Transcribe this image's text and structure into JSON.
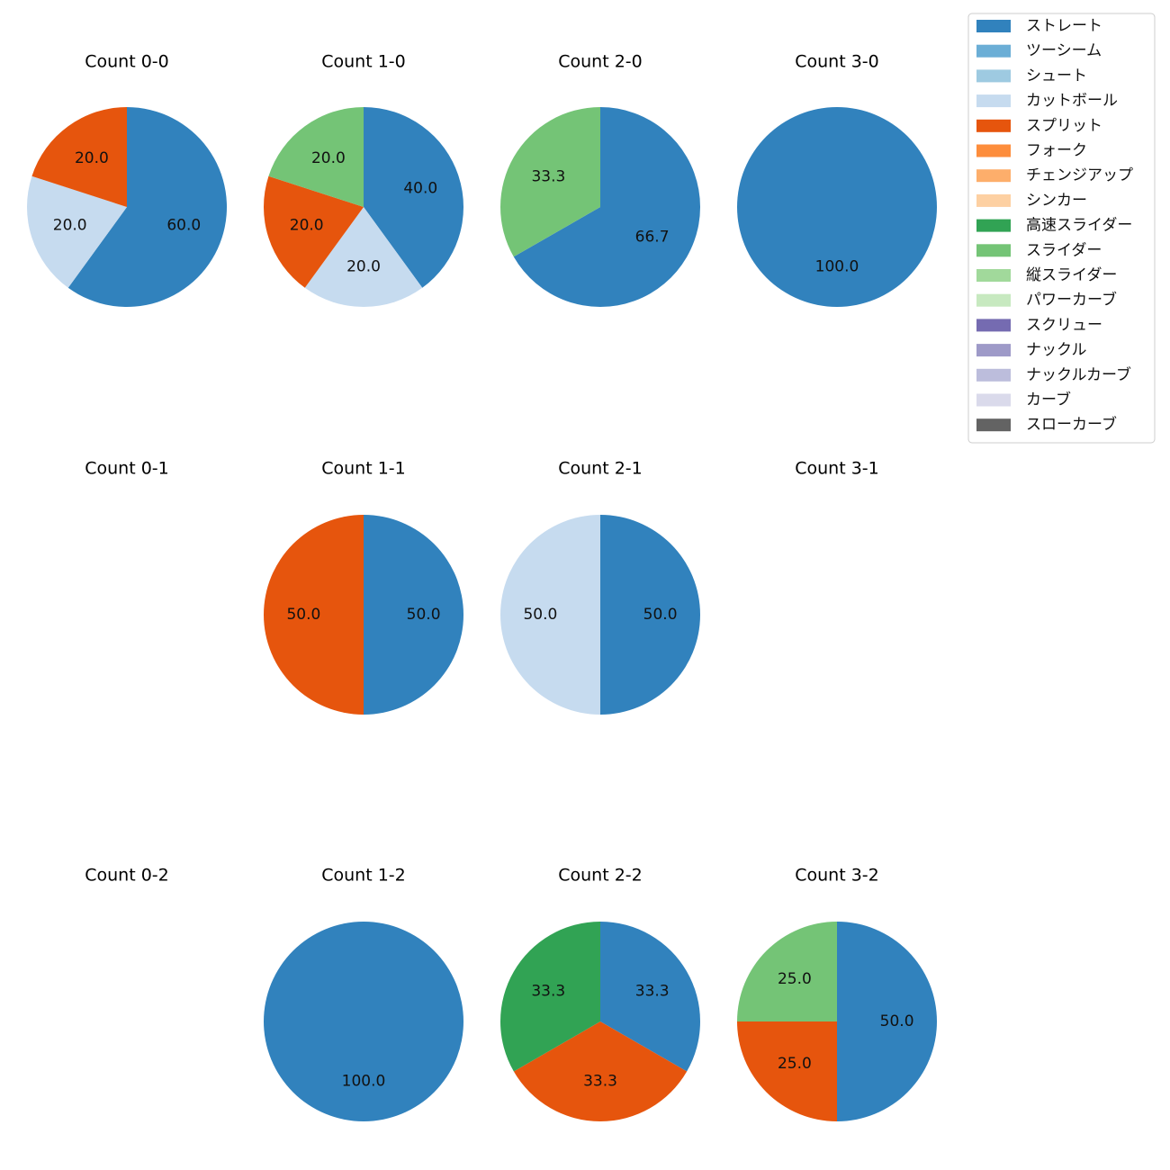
{
  "chart_data": {
    "type": "pie",
    "legend": {
      "position": "top-right",
      "entries": [
        {
          "name": "ストレート",
          "color": "#3182bd"
        },
        {
          "name": "ツーシーム",
          "color": "#6baed6"
        },
        {
          "name": "シュート",
          "color": "#9ecae1"
        },
        {
          "name": "カットボール",
          "color": "#c6dbef"
        },
        {
          "name": "スプリット",
          "color": "#e6550d"
        },
        {
          "name": "フォーク",
          "color": "#fd8d3c"
        },
        {
          "name": "チェンジアップ",
          "color": "#fdae6b"
        },
        {
          "name": "シンカー",
          "color": "#fdd0a2"
        },
        {
          "name": "高速スライダー",
          "color": "#31a354"
        },
        {
          "name": "スライダー",
          "color": "#74c476"
        },
        {
          "name": "縦スライダー",
          "color": "#a1d99b"
        },
        {
          "name": "パワーカーブ",
          "color": "#c7e9c0"
        },
        {
          "name": "スクリュー",
          "color": "#756bb1"
        },
        {
          "name": "ナックル",
          "color": "#9e9ac8"
        },
        {
          "name": "ナックルカーブ",
          "color": "#bcbddc"
        },
        {
          "name": "カーブ",
          "color": "#dadaeb"
        },
        {
          "name": "スローカーブ",
          "color": "#636363"
        }
      ]
    },
    "pies": [
      {
        "title": "Count 0-0",
        "slices": [
          {
            "pitch": "ストレート",
            "value": 60.0,
            "label": "60.0"
          },
          {
            "pitch": "カットボール",
            "value": 20.0,
            "label": "20.0"
          },
          {
            "pitch": "スプリット",
            "value": 20.0,
            "label": "20.0"
          }
        ]
      },
      {
        "title": "Count 1-0",
        "slices": [
          {
            "pitch": "ストレート",
            "value": 40.0,
            "label": "40.0"
          },
          {
            "pitch": "カットボール",
            "value": 20.0,
            "label": "20.0"
          },
          {
            "pitch": "スプリット",
            "value": 20.0,
            "label": "20.0"
          },
          {
            "pitch": "スライダー",
            "value": 20.0,
            "label": "20.0"
          }
        ]
      },
      {
        "title": "Count 2-0",
        "slices": [
          {
            "pitch": "ストレート",
            "value": 66.7,
            "label": "66.7"
          },
          {
            "pitch": "スライダー",
            "value": 33.3,
            "label": "33.3"
          }
        ]
      },
      {
        "title": "Count 3-0",
        "slices": [
          {
            "pitch": "ストレート",
            "value": 100.0,
            "label": "100.0"
          }
        ]
      },
      {
        "title": "Count 0-1",
        "slices": []
      },
      {
        "title": "Count 1-1",
        "slices": [
          {
            "pitch": "ストレート",
            "value": 50.0,
            "label": "50.0"
          },
          {
            "pitch": "スプリット",
            "value": 50.0,
            "label": "50.0"
          }
        ]
      },
      {
        "title": "Count 2-1",
        "slices": [
          {
            "pitch": "ストレート",
            "value": 50.0,
            "label": "50.0"
          },
          {
            "pitch": "カットボール",
            "value": 50.0,
            "label": "50.0"
          }
        ]
      },
      {
        "title": "Count 3-1",
        "slices": []
      },
      {
        "title": "Count 0-2",
        "slices": []
      },
      {
        "title": "Count 1-2",
        "slices": [
          {
            "pitch": "ストレート",
            "value": 100.0,
            "label": "100.0"
          }
        ]
      },
      {
        "title": "Count 2-2",
        "slices": [
          {
            "pitch": "ストレート",
            "value": 33.3,
            "label": "33.3"
          },
          {
            "pitch": "スプリット",
            "value": 33.3,
            "label": "33.3"
          },
          {
            "pitch": "高速スライダー",
            "value": 33.3,
            "label": "33.3"
          }
        ]
      },
      {
        "title": "Count 3-2",
        "slices": [
          {
            "pitch": "ストレート",
            "value": 50.0,
            "label": "50.0"
          },
          {
            "pitch": "スプリット",
            "value": 25.0,
            "label": "25.0"
          },
          {
            "pitch": "スライダー",
            "value": 25.0,
            "label": "25.0"
          }
        ]
      }
    ]
  }
}
